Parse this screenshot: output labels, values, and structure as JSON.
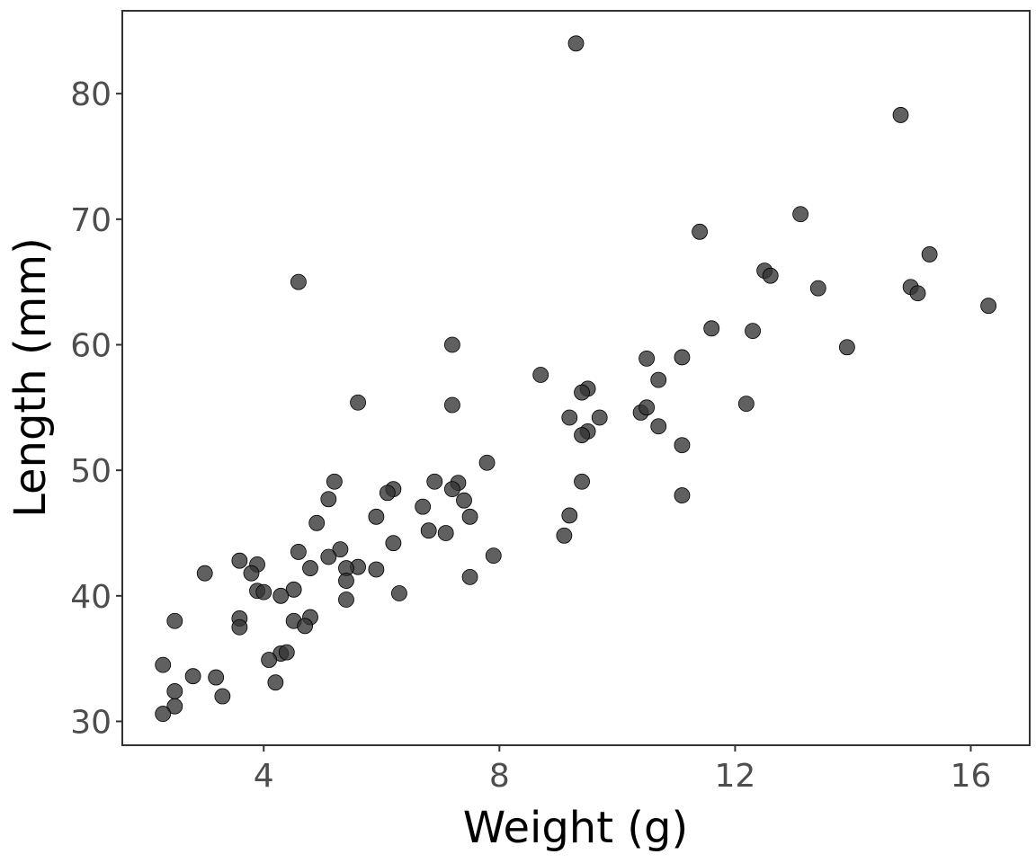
{
  "chart_data": {
    "type": "scatter",
    "title": "",
    "xlabel": "Weight (g)",
    "ylabel": "Length (mm)",
    "xlim": [
      1.6,
      17.0
    ],
    "ylim": [
      28.1,
      86.6
    ],
    "xticks": [
      4,
      8,
      12,
      16
    ],
    "yticks": [
      30,
      40,
      50,
      60,
      70,
      80
    ],
    "grid": false,
    "marker_color": "#333333",
    "marker_edge": "#000000",
    "points": [
      [
        9.3,
        84.0
      ],
      [
        14.81,
        78.3
      ],
      [
        13.11,
        70.4
      ],
      [
        11.4,
        69.0
      ],
      [
        15.3,
        67.2
      ],
      [
        12.5,
        65.9
      ],
      [
        12.6,
        65.5
      ],
      [
        13.41,
        64.5
      ],
      [
        14.98,
        64.6
      ],
      [
        15.1,
        64.1
      ],
      [
        4.59,
        65.0
      ],
      [
        16.3,
        63.1
      ],
      [
        11.6,
        61.3
      ],
      [
        12.3,
        61.1
      ],
      [
        7.2,
        60.0
      ],
      [
        13.9,
        59.8
      ],
      [
        10.5,
        58.9
      ],
      [
        11.1,
        59.0
      ],
      [
        8.7,
        57.6
      ],
      [
        10.7,
        57.2
      ],
      [
        9.5,
        56.5
      ],
      [
        9.4,
        56.2
      ],
      [
        5.6,
        55.4
      ],
      [
        7.2,
        55.2
      ],
      [
        12.19,
        55.3
      ],
      [
        10.4,
        54.6
      ],
      [
        10.5,
        55.0
      ],
      [
        9.19,
        54.2
      ],
      [
        9.7,
        54.2
      ],
      [
        10.7,
        53.5
      ],
      [
        9.5,
        53.1
      ],
      [
        9.4,
        52.8
      ],
      [
        11.1,
        52.0
      ],
      [
        7.79,
        50.6
      ],
      [
        5.2,
        49.1
      ],
      [
        6.9,
        49.1
      ],
      [
        7.3,
        49.0
      ],
      [
        9.4,
        49.1
      ],
      [
        6.2,
        48.5
      ],
      [
        7.2,
        48.5
      ],
      [
        6.1,
        48.2
      ],
      [
        11.1,
        48.0
      ],
      [
        5.1,
        47.7
      ],
      [
        7.4,
        47.6
      ],
      [
        6.7,
        47.1
      ],
      [
        5.91,
        46.3
      ],
      [
        7.5,
        46.3
      ],
      [
        9.19,
        46.4
      ],
      [
        4.9,
        45.8
      ],
      [
        6.8,
        45.2
      ],
      [
        7.09,
        45.0
      ],
      [
        9.1,
        44.8
      ],
      [
        6.2,
        44.2
      ],
      [
        5.3,
        43.7
      ],
      [
        4.59,
        43.5
      ],
      [
        5.1,
        43.1
      ],
      [
        7.9,
        43.2
      ],
      [
        3.59,
        42.8
      ],
      [
        3.89,
        42.5
      ],
      [
        4.79,
        42.2
      ],
      [
        5.6,
        42.3
      ],
      [
        5.4,
        42.2
      ],
      [
        5.91,
        42.1
      ],
      [
        3.0,
        41.8
      ],
      [
        3.79,
        41.8
      ],
      [
        7.5,
        41.5
      ],
      [
        5.4,
        41.2
      ],
      [
        3.89,
        40.4
      ],
      [
        4.0,
        40.3
      ],
      [
        4.51,
        40.5
      ],
      [
        4.29,
        40.0
      ],
      [
        6.3,
        40.2
      ],
      [
        5.4,
        39.7
      ],
      [
        2.49,
        38.0
      ],
      [
        3.59,
        38.2
      ],
      [
        4.51,
        38.0
      ],
      [
        4.79,
        38.3
      ],
      [
        3.59,
        37.5
      ],
      [
        4.7,
        37.6
      ],
      [
        4.29,
        35.4
      ],
      [
        4.39,
        35.5
      ],
      [
        4.09,
        34.9
      ],
      [
        2.29,
        34.5
      ],
      [
        2.8,
        33.6
      ],
      [
        3.19,
        33.5
      ],
      [
        4.2,
        33.1
      ],
      [
        2.49,
        32.4
      ],
      [
        3.3,
        32.0
      ],
      [
        2.49,
        31.2
      ],
      [
        2.29,
        30.6
      ]
    ]
  }
}
